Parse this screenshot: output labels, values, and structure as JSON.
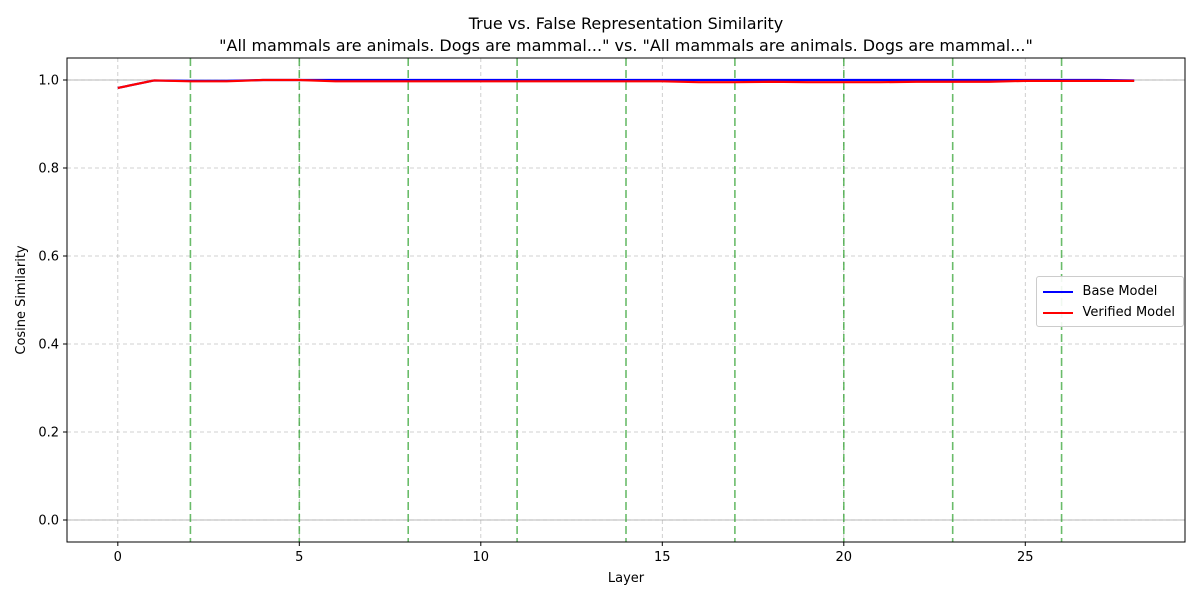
{
  "chart_data": {
    "type": "line",
    "title": "True vs. False Representation Similarity",
    "subtitle": "\"All mammals are animals. Dogs are mammal...\" vs. \"All mammals are animals. Dogs are mammal...\"",
    "xlabel": "Layer",
    "ylabel": "Cosine Similarity",
    "xlim": [
      -1.4,
      29.4
    ],
    "ylim": [
      -0.05,
      1.05
    ],
    "xticks": [
      0,
      5,
      10,
      15,
      20,
      25
    ],
    "yticks": [
      0.0,
      0.2,
      0.4,
      0.6,
      0.8,
      1.0
    ],
    "ytick_labels": [
      "0.0",
      "0.2",
      "0.4",
      "0.6",
      "0.8",
      "1.0"
    ],
    "grid": true,
    "legend_position": "center-right",
    "x": [
      0,
      1,
      2,
      3,
      4,
      5,
      6,
      7,
      8,
      9,
      10,
      11,
      12,
      13,
      14,
      15,
      16,
      17,
      18,
      19,
      20,
      21,
      22,
      23,
      24,
      25,
      26,
      27,
      28
    ],
    "series": [
      {
        "name": "Base Model",
        "color": "#0000ff",
        "values": [
          0.982,
          0.999,
          0.998,
          0.998,
          1.0,
          1.0,
          1.0,
          1.0,
          1.0,
          1.0,
          1.0,
          1.0,
          1.0,
          1.0,
          1.0,
          1.0,
          1.0,
          1.0,
          1.0,
          1.0,
          1.0,
          1.0,
          1.0,
          1.0,
          1.0,
          1.0,
          1.0,
          1.0,
          0.999
        ]
      },
      {
        "name": "Verified Model",
        "color": "#ff0000",
        "values": [
          0.982,
          0.999,
          0.997,
          0.997,
          1.0,
          1.0,
          0.997,
          0.997,
          0.997,
          0.997,
          0.997,
          0.997,
          0.997,
          0.997,
          0.997,
          0.997,
          0.995,
          0.995,
          0.996,
          0.995,
          0.995,
          0.995,
          0.996,
          0.996,
          0.996,
          0.998,
          0.998,
          0.998,
          0.998
        ]
      }
    ],
    "vlines": {
      "color": "#2ca02c",
      "x": [
        2,
        5,
        8,
        11,
        14,
        17,
        20,
        23,
        26
      ]
    },
    "hlines": {
      "color": "#aaaaaa",
      "y": [
        0.0,
        1.0
      ]
    }
  }
}
